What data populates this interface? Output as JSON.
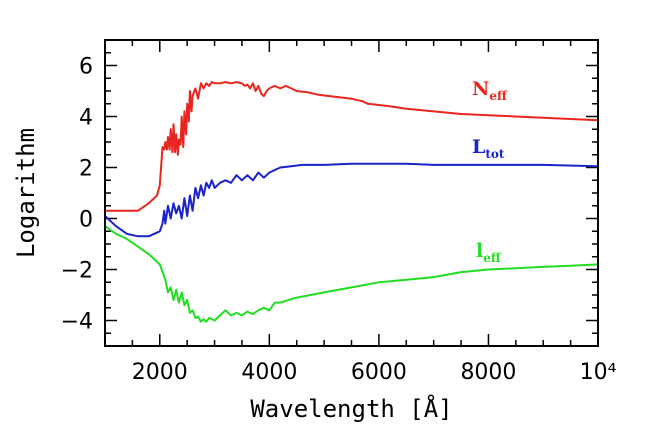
{
  "chart_data": {
    "type": "line",
    "xlabel": "Wavelength [Å]",
    "ylabel": "Logarithm",
    "xlim": [
      1000,
      10000
    ],
    "ylim": [
      -5,
      7
    ],
    "x_tick_labels": [
      {
        "value": 2000,
        "label": "2000"
      },
      {
        "value": 4000,
        "label": "4000"
      },
      {
        "value": 6000,
        "label": "6000"
      },
      {
        "value": 8000,
        "label": "8000"
      },
      {
        "value": 10000,
        "label": "10⁴"
      }
    ],
    "y_tick_labels": [
      {
        "value": 6,
        "label": "6"
      },
      {
        "value": 4,
        "label": "4"
      },
      {
        "value": 2,
        "label": "2"
      },
      {
        "value": 0,
        "label": "0"
      },
      {
        "value": -2,
        "label": "−2"
      },
      {
        "value": -4,
        "label": "−4"
      }
    ],
    "series": [
      {
        "name": "N",
        "subscript": "eff",
        "color": "#e8251e",
        "x": [
          1000,
          1200,
          1400,
          1600,
          1800,
          1950,
          2000,
          2050,
          2080,
          2100,
          2130,
          2150,
          2180,
          2200,
          2230,
          2250,
          2280,
          2300,
          2330,
          2350,
          2380,
          2400,
          2430,
          2450,
          2480,
          2500,
          2530,
          2550,
          2580,
          2600,
          2650,
          2700,
          2750,
          2800,
          2850,
          2900,
          2950,
          3000,
          3100,
          3200,
          3300,
          3400,
          3500,
          3550,
          3600,
          3650,
          3700,
          3750,
          3800,
          3850,
          3900,
          3950,
          4000,
          4100,
          4200,
          4300,
          4400,
          4500,
          4700,
          4900,
          5100,
          5300,
          5500,
          5700,
          5800,
          6000,
          6200,
          6500,
          7000,
          7500,
          8000,
          8500,
          9000,
          9500,
          10000
        ],
        "y": [
          0.3,
          0.3,
          0.3,
          0.3,
          0.6,
          0.9,
          1.3,
          2.8,
          2.7,
          3.0,
          2.7,
          3.2,
          2.7,
          3.5,
          2.6,
          3.7,
          2.6,
          3.3,
          2.5,
          3.1,
          2.9,
          4.0,
          2.8,
          4.2,
          3.3,
          4.5,
          3.8,
          5.0,
          4.2,
          4.8,
          5.1,
          4.7,
          5.3,
          5.1,
          5.3,
          5.2,
          5.35,
          5.3,
          5.3,
          5.35,
          5.3,
          5.35,
          5.3,
          5.2,
          5.25,
          5.1,
          5.3,
          5.0,
          5.2,
          4.9,
          4.8,
          5.0,
          5.1,
          5.2,
          5.1,
          5.2,
          5.1,
          5.0,
          4.95,
          4.85,
          4.8,
          4.75,
          4.7,
          4.6,
          4.5,
          4.45,
          4.4,
          4.3,
          4.2,
          4.1,
          4.05,
          4.0,
          3.95,
          3.9,
          3.85
        ]
      },
      {
        "name": "L",
        "subscript": "tot",
        "color": "#1a22c8",
        "x": [
          1000,
          1200,
          1400,
          1600,
          1800,
          2000,
          2050,
          2080,
          2100,
          2150,
          2200,
          2250,
          2300,
          2350,
          2400,
          2450,
          2500,
          2550,
          2600,
          2650,
          2700,
          2750,
          2800,
          2850,
          2900,
          2950,
          3000,
          3100,
          3200,
          3300,
          3400,
          3500,
          3600,
          3700,
          3800,
          3900,
          4000,
          4100,
          4200,
          4400,
          4600,
          5000,
          5500,
          6000,
          6500,
          7000,
          8000,
          9000,
          10000
        ],
        "y": [
          0.1,
          -0.3,
          -0.6,
          -0.7,
          -0.7,
          -0.5,
          -0.2,
          0.3,
          -0.2,
          0.5,
          0.0,
          0.6,
          0.2,
          0.5,
          0.0,
          0.8,
          0.1,
          0.9,
          0.3,
          1.2,
          0.8,
          1.3,
          0.9,
          1.4,
          1.2,
          1.5,
          1.2,
          1.4,
          1.5,
          1.4,
          1.7,
          1.5,
          1.7,
          1.5,
          1.8,
          1.6,
          1.8,
          1.9,
          2.0,
          2.05,
          2.1,
          2.1,
          2.15,
          2.15,
          2.15,
          2.1,
          2.1,
          2.1,
          2.05
        ]
      },
      {
        "name": "l",
        "subscript": "eff",
        "color": "#22dd22",
        "x": [
          1000,
          1200,
          1400,
          1600,
          1800,
          2000,
          2100,
          2150,
          2200,
          2250,
          2300,
          2350,
          2400,
          2450,
          2500,
          2550,
          2600,
          2650,
          2700,
          2750,
          2800,
          2850,
          2900,
          3000,
          3100,
          3200,
          3300,
          3400,
          3500,
          3600,
          3700,
          3800,
          3900,
          4000,
          4100,
          4200,
          4500,
          5000,
          5500,
          6000,
          6500,
          7000,
          7500,
          8000,
          8500,
          9000,
          9500,
          10000
        ],
        "y": [
          -0.3,
          -0.6,
          -0.8,
          -1.1,
          -1.4,
          -1.8,
          -2.4,
          -2.9,
          -2.7,
          -3.2,
          -2.8,
          -3.3,
          -2.9,
          -3.4,
          -3.2,
          -3.7,
          -3.6,
          -3.9,
          -3.85,
          -4.05,
          -3.95,
          -4.05,
          -3.9,
          -4.0,
          -3.8,
          -3.6,
          -3.8,
          -3.7,
          -3.8,
          -3.65,
          -3.75,
          -3.6,
          -3.5,
          -3.6,
          -3.3,
          -3.3,
          -3.1,
          -2.9,
          -2.7,
          -2.5,
          -2.4,
          -2.3,
          -2.1,
          -2.0,
          -1.95,
          -1.9,
          -1.85,
          -1.8
        ]
      }
    ]
  }
}
